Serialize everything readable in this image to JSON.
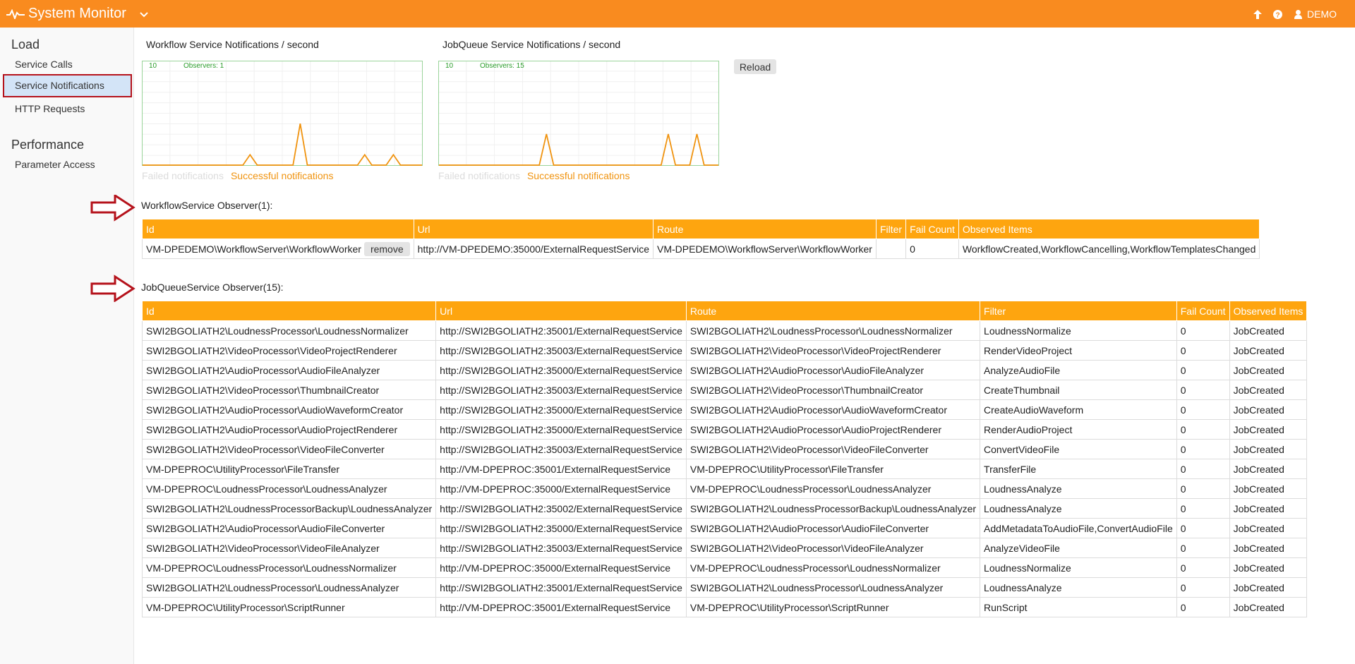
{
  "header": {
    "title": "System Monitor",
    "user": "DEMO"
  },
  "sidebar": {
    "sections": [
      {
        "title": "Load",
        "items": [
          "Service Calls",
          "Service Notifications",
          "HTTP Requests"
        ],
        "selected": 1
      },
      {
        "title": "Performance",
        "items": [
          "Parameter Access"
        ]
      }
    ]
  },
  "chart_data": [
    {
      "type": "line",
      "title": "Workflow Service Notifications / second",
      "annotation": "Observers: 1",
      "ylim": [
        0,
        10
      ],
      "yticks": [
        10
      ],
      "series": [
        {
          "name": "Failed notifications",
          "color": "#dcdcdc",
          "visible": false
        },
        {
          "name": "Successful notifications",
          "color": "#f0930f",
          "values": [
            0,
            0,
            0,
            0,
            0,
            0,
            0,
            0,
            0,
            0,
            0,
            0,
            0,
            0,
            0,
            1,
            0,
            0,
            0,
            0,
            0,
            0,
            4,
            0,
            0,
            0,
            0,
            0,
            0,
            0,
            0,
            1,
            0,
            0,
            0,
            1,
            0,
            0,
            0,
            0
          ]
        }
      ]
    },
    {
      "type": "line",
      "title": "JobQueue Service Notifications / second",
      "annotation": "Observers: 15",
      "ylim": [
        0,
        10
      ],
      "yticks": [
        10
      ],
      "series": [
        {
          "name": "Failed notifications",
          "color": "#dcdcdc",
          "visible": false
        },
        {
          "name": "Successful notifications",
          "color": "#f0930f",
          "values": [
            0,
            0,
            0,
            0,
            0,
            0,
            0,
            0,
            0,
            0,
            0,
            0,
            0,
            0,
            0,
            3,
            0,
            0,
            0,
            0,
            0,
            0,
            0,
            0,
            0,
            0,
            0,
            0,
            0,
            0,
            0,
            0,
            3,
            0,
            0,
            0,
            3,
            0,
            0,
            0
          ]
        }
      ]
    }
  ],
  "reload": "Reload",
  "tables": [
    {
      "title": "WorkflowService Observer(1):",
      "row_action": "remove",
      "columns": [
        "Id",
        "Url",
        "Route",
        "Filter",
        "Fail Count",
        "Observed Items"
      ],
      "rows": [
        [
          "VM-DPEDEMO\\WorkflowServer\\WorkflowWorker",
          "http://VM-DPEDEMO:35000/ExternalRequestService",
          "VM-DPEDEMO\\WorkflowServer\\WorkflowWorker",
          null,
          0,
          "WorkflowCreated,WorkflowCancelling,WorkflowTemplatesChanged"
        ]
      ]
    },
    {
      "title": "JobQueueService Observer(15):",
      "columns": [
        "Id",
        "Url",
        "Route",
        "Filter",
        "Fail Count",
        "Observed Items"
      ],
      "rows": [
        [
          "SWI2BGOLIATH2\\LoudnessProcessor\\LoudnessNormalizer",
          "http://SWI2BGOLIATH2:35001/ExternalRequestService",
          "SWI2BGOLIATH2\\LoudnessProcessor\\LoudnessNormalizer",
          "LoudnessNormalize",
          0,
          "JobCreated"
        ],
        [
          "SWI2BGOLIATH2\\VideoProcessor\\VideoProjectRenderer",
          "http://SWI2BGOLIATH2:35003/ExternalRequestService",
          "SWI2BGOLIATH2\\VideoProcessor\\VideoProjectRenderer",
          "RenderVideoProject",
          0,
          "JobCreated"
        ],
        [
          "SWI2BGOLIATH2\\AudioProcessor\\AudioFileAnalyzer",
          "http://SWI2BGOLIATH2:35000/ExternalRequestService",
          "SWI2BGOLIATH2\\AudioProcessor\\AudioFileAnalyzer",
          "AnalyzeAudioFile",
          0,
          "JobCreated"
        ],
        [
          "SWI2BGOLIATH2\\VideoProcessor\\ThumbnailCreator",
          "http://SWI2BGOLIATH2:35003/ExternalRequestService",
          "SWI2BGOLIATH2\\VideoProcessor\\ThumbnailCreator",
          "CreateThumbnail",
          0,
          "JobCreated"
        ],
        [
          "SWI2BGOLIATH2\\AudioProcessor\\AudioWaveformCreator",
          "http://SWI2BGOLIATH2:35000/ExternalRequestService",
          "SWI2BGOLIATH2\\AudioProcessor\\AudioWaveformCreator",
          "CreateAudioWaveform",
          0,
          "JobCreated"
        ],
        [
          "SWI2BGOLIATH2\\AudioProcessor\\AudioProjectRenderer",
          "http://SWI2BGOLIATH2:35000/ExternalRequestService",
          "SWI2BGOLIATH2\\AudioProcessor\\AudioProjectRenderer",
          "RenderAudioProject",
          0,
          "JobCreated"
        ],
        [
          "SWI2BGOLIATH2\\VideoProcessor\\VideoFileConverter",
          "http://SWI2BGOLIATH2:35003/ExternalRequestService",
          "SWI2BGOLIATH2\\VideoProcessor\\VideoFileConverter",
          "ConvertVideoFile",
          0,
          "JobCreated"
        ],
        [
          "VM-DPEPROC\\UtilityProcessor\\FileTransfer",
          "http://VM-DPEPROC:35001/ExternalRequestService",
          "VM-DPEPROC\\UtilityProcessor\\FileTransfer",
          "TransferFile",
          0,
          "JobCreated"
        ],
        [
          "VM-DPEPROC\\LoudnessProcessor\\LoudnessAnalyzer",
          "http://VM-DPEPROC:35000/ExternalRequestService",
          "VM-DPEPROC\\LoudnessProcessor\\LoudnessAnalyzer",
          "LoudnessAnalyze",
          0,
          "JobCreated"
        ],
        [
          "SWI2BGOLIATH2\\LoudnessProcessorBackup\\LoudnessAnalyzer",
          "http://SWI2BGOLIATH2:35002/ExternalRequestService",
          "SWI2BGOLIATH2\\LoudnessProcessorBackup\\LoudnessAnalyzer",
          "LoudnessAnalyze",
          0,
          "JobCreated"
        ],
        [
          "SWI2BGOLIATH2\\AudioProcessor\\AudioFileConverter",
          "http://SWI2BGOLIATH2:35000/ExternalRequestService",
          "SWI2BGOLIATH2\\AudioProcessor\\AudioFileConverter",
          "AddMetadataToAudioFile,ConvertAudioFile",
          0,
          "JobCreated"
        ],
        [
          "SWI2BGOLIATH2\\VideoProcessor\\VideoFileAnalyzer",
          "http://SWI2BGOLIATH2:35003/ExternalRequestService",
          "SWI2BGOLIATH2\\VideoProcessor\\VideoFileAnalyzer",
          "AnalyzeVideoFile",
          0,
          "JobCreated"
        ],
        [
          "VM-DPEPROC\\LoudnessProcessor\\LoudnessNormalizer",
          "http://VM-DPEPROC:35000/ExternalRequestService",
          "VM-DPEPROC\\LoudnessProcessor\\LoudnessNormalizer",
          "LoudnessNormalize",
          0,
          "JobCreated"
        ],
        [
          "SWI2BGOLIATH2\\LoudnessProcessor\\LoudnessAnalyzer",
          "http://SWI2BGOLIATH2:35001/ExternalRequestService",
          "SWI2BGOLIATH2\\LoudnessProcessor\\LoudnessAnalyzer",
          "LoudnessAnalyze",
          0,
          "JobCreated"
        ],
        [
          "VM-DPEPROC\\UtilityProcessor\\ScriptRunner",
          "http://VM-DPEPROC:35001/ExternalRequestService",
          "VM-DPEPROC\\UtilityProcessor\\ScriptRunner",
          "RunScript",
          0,
          "JobCreated"
        ]
      ]
    }
  ]
}
